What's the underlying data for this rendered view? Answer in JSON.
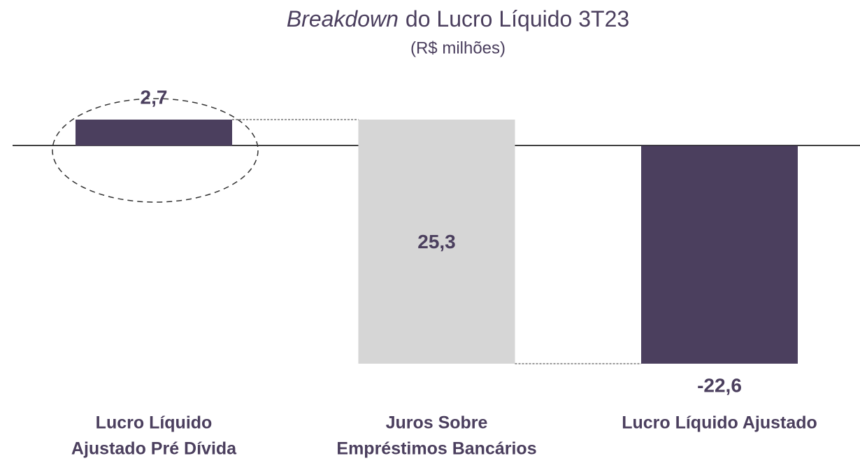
{
  "chart_data": {
    "type": "waterfall",
    "title": {
      "emphasis": "Breakdown",
      "text": "do Lucro Líquido 3T23"
    },
    "subtitle": "(R$ milhões)",
    "categories": [
      [
        "Lucro Líquido",
        "Ajustado Pré Dívida"
      ],
      [
        "Juros Sobre",
        "Empréstimos Bancários"
      ],
      [
        "Lucro Líquido Ajustado"
      ]
    ],
    "measure": [
      "absolute",
      "relative",
      "total"
    ],
    "values": [
      2.7,
      -25.3,
      -22.6
    ],
    "value_labels": [
      "2,7",
      "25,3",
      "-22,6"
    ],
    "colors": [
      "#4b3f5e",
      "#d6d6d6",
      "#4b3f5e"
    ]
  }
}
